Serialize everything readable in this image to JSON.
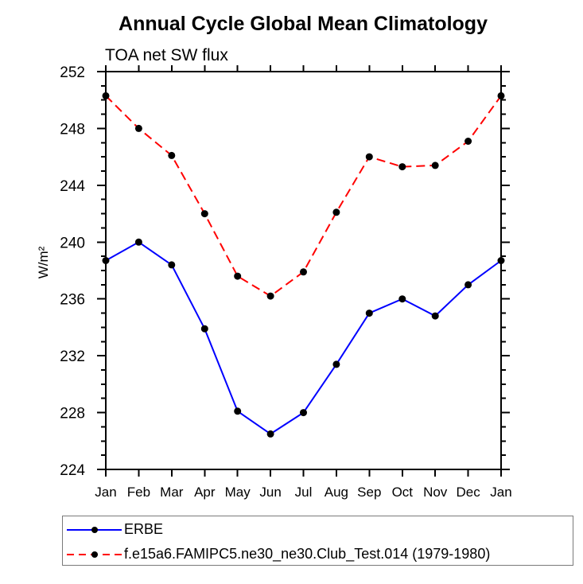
{
  "chart_data": {
    "type": "line",
    "title": "Annual Cycle Global Mean Climatology",
    "subtitle": "TOA net SW flux",
    "xlabel": "",
    "ylabel": "W/m²",
    "ylim": [
      224,
      252
    ],
    "ytick_major_step": 4,
    "ytick_minor_step": 1,
    "grid": false,
    "legend_position": "bottom-left",
    "axis_color": "#000000",
    "categories": [
      "Jan",
      "Feb",
      "Mar",
      "Apr",
      "May",
      "Jun",
      "Jul",
      "Aug",
      "Sep",
      "Oct",
      "Nov",
      "Dec",
      "Jan"
    ],
    "series": [
      {
        "name": "ERBE",
        "color": "#0000ff",
        "line_style": "solid",
        "marker": "filled-circle",
        "marker_color": "#000000",
        "values": [
          238.7,
          240.0,
          238.4,
          233.9,
          228.1,
          226.5,
          228.0,
          231.4,
          235.0,
          236.0,
          234.8,
          237.0,
          238.7
        ]
      },
      {
        "name": "f.e15a6.FAMIPC5.ne30_ne30.Club_Test.014 (1979-1980)",
        "color": "#ff0000",
        "line_style": "dashed",
        "marker": "filled-circle",
        "marker_color": "#000000",
        "values": [
          250.3,
          248.0,
          246.1,
          242.0,
          237.6,
          236.2,
          237.9,
          242.1,
          246.0,
          245.3,
          245.4,
          247.1,
          250.3
        ]
      }
    ]
  }
}
